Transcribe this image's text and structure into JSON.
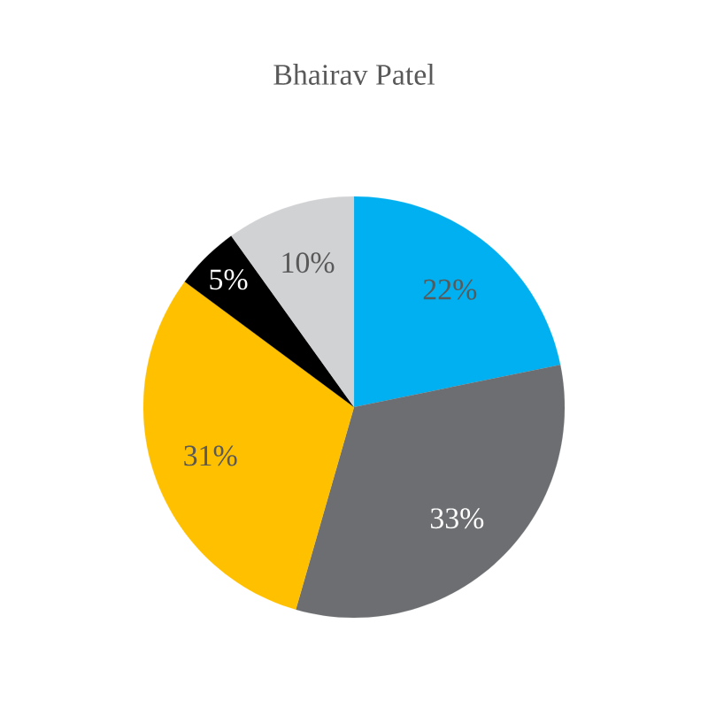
{
  "chart_data": {
    "type": "pie",
    "title": "Bhairav Patel",
    "categories": [
      null,
      null,
      null,
      null,
      null
    ],
    "values": [
      22,
      33,
      31,
      5,
      10
    ],
    "colors": [
      "#00b0f0",
      "#6d6e71",
      "#ffc000",
      "#000000",
      "#d1d2d4"
    ],
    "value_labels": [
      "22%",
      "33%",
      "31%",
      "5%",
      "10%"
    ]
  }
}
